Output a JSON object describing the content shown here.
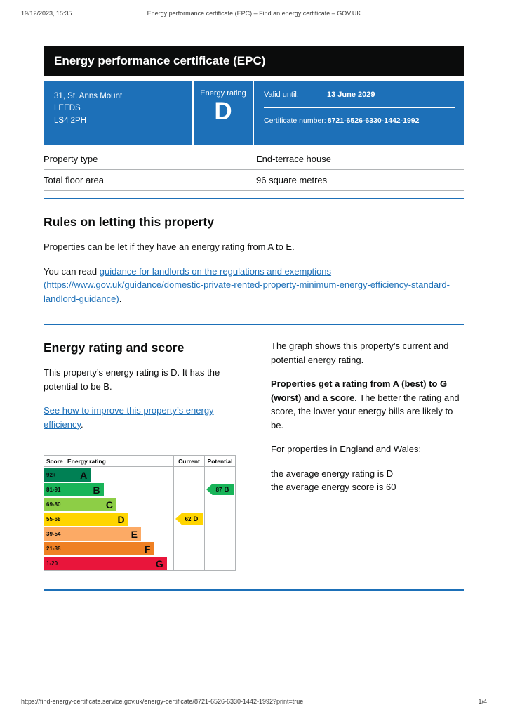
{
  "print_header": {
    "datetime": "19/12/2023, 15:35",
    "title": "Energy performance certificate (EPC) – Find an energy certificate – GOV.UK"
  },
  "banner": {
    "title": "Energy performance certificate (EPC)"
  },
  "summary": {
    "address_line1": "31, St. Anns Mount",
    "address_line2": "LEEDS",
    "address_line3": "LS4 2PH",
    "energy_rating_label": "Energy rating",
    "energy_rating": "D",
    "valid_until_label": "Valid until:",
    "valid_until": "13 June 2029",
    "certificate_number_label": "Certificate number:",
    "certificate_number": "8721-6526-6330-1442-1992",
    "panel_color": "#1d70b8"
  },
  "property_details": {
    "rows": [
      {
        "label": "Property type",
        "value": "End-terrace house"
      },
      {
        "label": "Total floor area",
        "value": "96 square metres"
      }
    ]
  },
  "letting_rules": {
    "heading": "Rules on letting this property",
    "para1": "Properties can be let if they have an energy rating from A to E.",
    "para2_prefix": "You can read ",
    "link_text": "guidance for landlords on the regulations and exemptions (https://www.gov.uk/guidance/domestic-private-rented-property-minimum-energy-efficiency-standard-landlord-guidance)",
    "para2_suffix": "."
  },
  "rating_section": {
    "heading": "Energy rating and score",
    "para1": "This property’s energy rating is D. It has the potential to be B.",
    "link_text": "See how to improve this property’s energy efficiency",
    "link_suffix": ".",
    "right_para1": "The graph shows this property’s current and potential energy rating.",
    "right_para2_bold": "Properties get a rating from A (best) to G (worst) and a score.",
    "right_para2_rest": " The better the rating and score, the lower your energy bills are likely to be.",
    "right_para3": "For properties in England and Wales:",
    "right_para4": "the average energy rating is D",
    "right_para5": "the average energy score is 60"
  },
  "chart": {
    "headers": {
      "score": "Score",
      "rating": "Energy rating",
      "current": "Current",
      "potential": "Potential"
    },
    "bands": [
      {
        "score": "92+",
        "letter": "A",
        "color": "#008054"
      },
      {
        "score": "81-91",
        "letter": "B",
        "color": "#19b459"
      },
      {
        "score": "69-80",
        "letter": "C",
        "color": "#8dce46"
      },
      {
        "score": "55-68",
        "letter": "D",
        "color": "#ffd500"
      },
      {
        "score": "39-54",
        "letter": "E",
        "color": "#fcaa65"
      },
      {
        "score": "21-38",
        "letter": "F",
        "color": "#ef8023"
      },
      {
        "score": "1-20",
        "letter": "G",
        "color": "#e9153b"
      }
    ],
    "current": {
      "value": "62",
      "letter": "D",
      "color": "#ffd500"
    },
    "potential": {
      "value": "87",
      "letter": "B",
      "color": "#19b459"
    }
  },
  "print_footer": {
    "url": "https://find-energy-certificate.service.gov.uk/energy-certificate/8721-6526-6330-1442-1992?print=true",
    "page": "1/4"
  }
}
